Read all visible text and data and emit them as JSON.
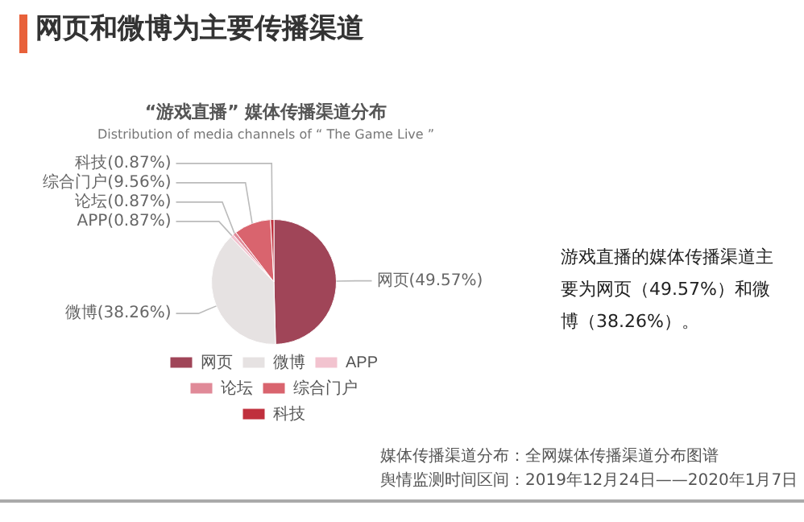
{
  "chart_data": {
    "type": "pie",
    "title": "“游戏直播” 媒体传播渠道分布",
    "subtitle": "Distribution of media channels of “ The Game Live ”",
    "categories": [
      "网页",
      "微博",
      "APP",
      "论坛",
      "综合门户",
      "科技"
    ],
    "values": [
      49.57,
      38.26,
      0.87,
      0.87,
      9.56,
      0.87
    ],
    "value_labels": [
      "(49.57%)",
      "(38.26%)",
      "(0.87%)",
      "(0.87%)",
      "(9.56%)",
      "(0.87%)"
    ],
    "colors": [
      "#a04558",
      "#e6e2e2",
      "#f2c3cf",
      "#e08a98",
      "#d9646e",
      "#c0303d"
    ],
    "legend": "bottom",
    "annotations": [
      "网页和微博为主要传播渠道",
      "游戏直播的媒体传播渠道主要为网页（49.57%）和微博（38.26%）。",
      "媒体传播渠道分布：全网媒体传播渠道分布图谱",
      "舆情监测时间区间：2019年12月24日——2020年1月7日"
    ]
  }
}
